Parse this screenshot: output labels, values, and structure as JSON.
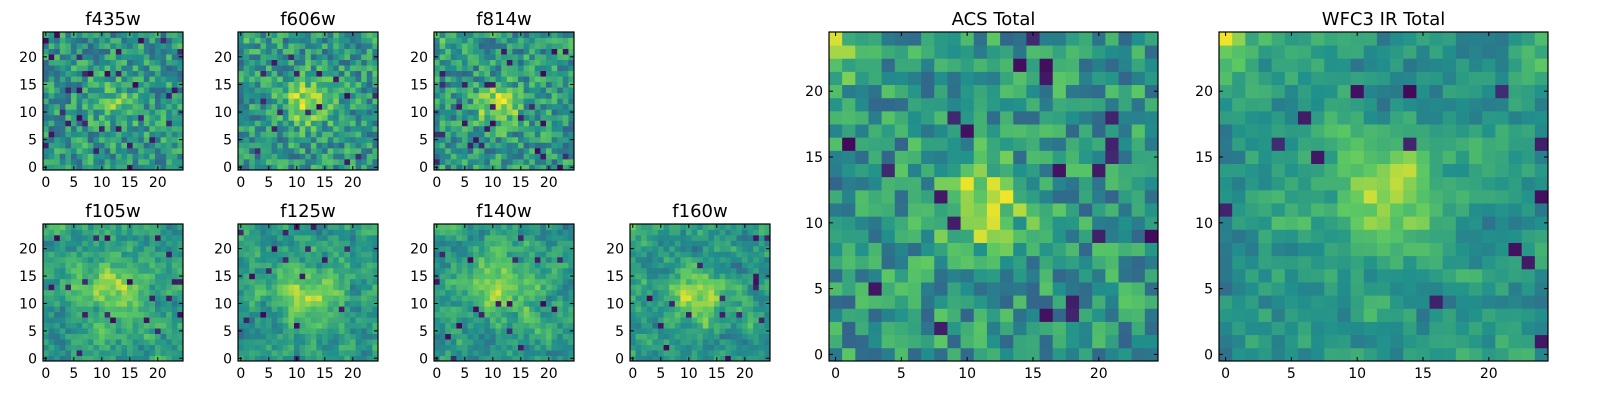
{
  "figure": {
    "colormap": "viridis",
    "colormap_stops": [
      "#440154",
      "#3b528b",
      "#21918c",
      "#5ec962",
      "#fde725"
    ]
  },
  "chart_data": [
    {
      "type": "heatmap",
      "title": "f435w",
      "size": [
        25,
        25
      ],
      "xlim": [
        -0.5,
        24.5
      ],
      "ylim": [
        -0.5,
        24.5
      ],
      "xticks": [
        0,
        5,
        10,
        15,
        20
      ],
      "yticks": [
        0,
        5,
        10,
        15,
        20
      ],
      "xtick_labels": [
        "0",
        "5",
        "10",
        "15",
        "20"
      ],
      "ytick_labels": [
        "0",
        "5",
        "10",
        "15",
        "20"
      ],
      "noise_model": {
        "seed": 11,
        "smooth": 0,
        "blob": {
          "center": [
            12,
            12
          ],
          "sigma": 3.0,
          "amp": 0.18
        },
        "corner_bright": 0.0,
        "dark_fraction": 0.05
      }
    },
    {
      "type": "heatmap",
      "title": "f606w",
      "size": [
        25,
        25
      ],
      "xlim": [
        -0.5,
        24.5
      ],
      "ylim": [
        -0.5,
        24.5
      ],
      "xticks": [
        0,
        5,
        10,
        15,
        20
      ],
      "yticks": [
        0,
        5,
        10,
        15,
        20
      ],
      "xtick_labels": [
        "0",
        "5",
        "10",
        "15",
        "20"
      ],
      "ytick_labels": [
        "0",
        "5",
        "10",
        "15",
        "20"
      ],
      "noise_model": {
        "seed": 23,
        "smooth": 0,
        "blob": {
          "center": [
            12,
            12
          ],
          "sigma": 3.0,
          "amp": 0.35
        },
        "corner_bright": 0.15,
        "dark_fraction": 0.03
      }
    },
    {
      "type": "heatmap",
      "title": "f814w",
      "size": [
        25,
        25
      ],
      "xlim": [
        -0.5,
        24.5
      ],
      "ylim": [
        -0.5,
        24.5
      ],
      "xticks": [
        0,
        5,
        10,
        15,
        20
      ],
      "yticks": [
        0,
        5,
        10,
        15,
        20
      ],
      "xtick_labels": [
        "0",
        "5",
        "10",
        "15",
        "20"
      ],
      "ytick_labels": [
        "0",
        "5",
        "10",
        "15",
        "20"
      ],
      "noise_model": {
        "seed": 37,
        "smooth": 0,
        "blob": {
          "center": [
            11,
            11
          ],
          "sigma": 2.5,
          "amp": 0.4
        },
        "corner_bright": 0.15,
        "dark_fraction": 0.04
      }
    },
    {
      "type": "heatmap",
      "title": "f105w",
      "size": [
        25,
        25
      ],
      "xlim": [
        -0.5,
        24.5
      ],
      "ylim": [
        -0.5,
        24.5
      ],
      "xticks": [
        0,
        5,
        10,
        15,
        20
      ],
      "yticks": [
        0,
        5,
        10,
        15,
        20
      ],
      "xtick_labels": [
        "0",
        "5",
        "10",
        "15",
        "20"
      ],
      "ytick_labels": [
        "0",
        "5",
        "10",
        "15",
        "20"
      ],
      "noise_model": {
        "seed": 51,
        "smooth": 1,
        "blob": {
          "center": [
            12,
            12
          ],
          "sigma": 4.0,
          "amp": 0.3
        },
        "corner_bright": 0.1,
        "dark_fraction": 0.04
      }
    },
    {
      "type": "heatmap",
      "title": "f125w",
      "size": [
        25,
        25
      ],
      "xlim": [
        -0.5,
        24.5
      ],
      "ylim": [
        -0.5,
        24.5
      ],
      "xticks": [
        0,
        5,
        10,
        15,
        20
      ],
      "yticks": [
        0,
        5,
        10,
        15,
        20
      ],
      "xtick_labels": [
        "0",
        "5",
        "10",
        "15",
        "20"
      ],
      "ytick_labels": [
        "0",
        "5",
        "10",
        "15",
        "20"
      ],
      "noise_model": {
        "seed": 67,
        "smooth": 1,
        "blob": {
          "center": [
            12,
            12
          ],
          "sigma": 4.0,
          "amp": 0.25
        },
        "corner_bright": 0.1,
        "dark_fraction": 0.03
      }
    },
    {
      "type": "heatmap",
      "title": "f140w",
      "size": [
        25,
        25
      ],
      "xlim": [
        -0.5,
        24.5
      ],
      "ylim": [
        -0.5,
        24.5
      ],
      "xticks": [
        0,
        5,
        10,
        15,
        20
      ],
      "yticks": [
        0,
        5,
        10,
        15,
        20
      ],
      "xtick_labels": [
        "0",
        "5",
        "10",
        "15",
        "20"
      ],
      "ytick_labels": [
        "0",
        "5",
        "10",
        "15",
        "20"
      ],
      "noise_model": {
        "seed": 79,
        "smooth": 1,
        "blob": {
          "center": [
            11,
            13
          ],
          "sigma": 4.0,
          "amp": 0.3
        },
        "corner_bright": 0.2,
        "dark_fraction": 0.03
      }
    },
    {
      "type": "heatmap",
      "title": "f160w",
      "size": [
        25,
        25
      ],
      "xlim": [
        -0.5,
        24.5
      ],
      "ylim": [
        -0.5,
        24.5
      ],
      "xticks": [
        0,
        5,
        10,
        15,
        20
      ],
      "yticks": [
        0,
        5,
        10,
        15,
        20
      ],
      "xtick_labels": [
        "0",
        "5",
        "10",
        "15",
        "20"
      ],
      "ytick_labels": [
        "0",
        "5",
        "10",
        "15",
        "20"
      ],
      "noise_model": {
        "seed": 97,
        "smooth": 1,
        "blob": {
          "center": [
            12,
            12
          ],
          "sigma": 3.5,
          "amp": 0.35
        },
        "corner_bright": 0.2,
        "dark_fraction": 0.03
      }
    },
    {
      "type": "heatmap",
      "title": "ACS Total",
      "size": [
        25,
        25
      ],
      "xlim": [
        -0.5,
        24.5
      ],
      "ylim": [
        -0.5,
        24.5
      ],
      "xticks": [
        0,
        5,
        10,
        15,
        20
      ],
      "yticks": [
        0,
        5,
        10,
        15,
        20
      ],
      "xtick_labels": [
        "0",
        "5",
        "10",
        "15",
        "20"
      ],
      "ytick_labels": [
        "0",
        "5",
        "10",
        "15",
        "20"
      ],
      "noise_model": {
        "seed": 131,
        "smooth": 0,
        "blob": {
          "center": [
            11,
            11
          ],
          "sigma": 2.2,
          "amp": 0.45
        },
        "corner_bright": 0.3,
        "dark_fraction": 0.04
      }
    },
    {
      "type": "heatmap",
      "title": "WFC3 IR Total",
      "size": [
        25,
        25
      ],
      "xlim": [
        -0.5,
        24.5
      ],
      "ylim": [
        -0.5,
        24.5
      ],
      "xticks": [
        0,
        5,
        10,
        15,
        20
      ],
      "yticks": [
        0,
        5,
        10,
        15,
        20
      ],
      "xtick_labels": [
        "0",
        "5",
        "10",
        "15",
        "20"
      ],
      "ytick_labels": [
        "0",
        "5",
        "10",
        "15",
        "20"
      ],
      "noise_model": {
        "seed": 173,
        "smooth": 1,
        "blob": {
          "center": [
            12,
            12
          ],
          "sigma": 3.5,
          "amp": 0.35
        },
        "corner_bright": 0.45,
        "dark_fraction": 0.03
      }
    }
  ]
}
